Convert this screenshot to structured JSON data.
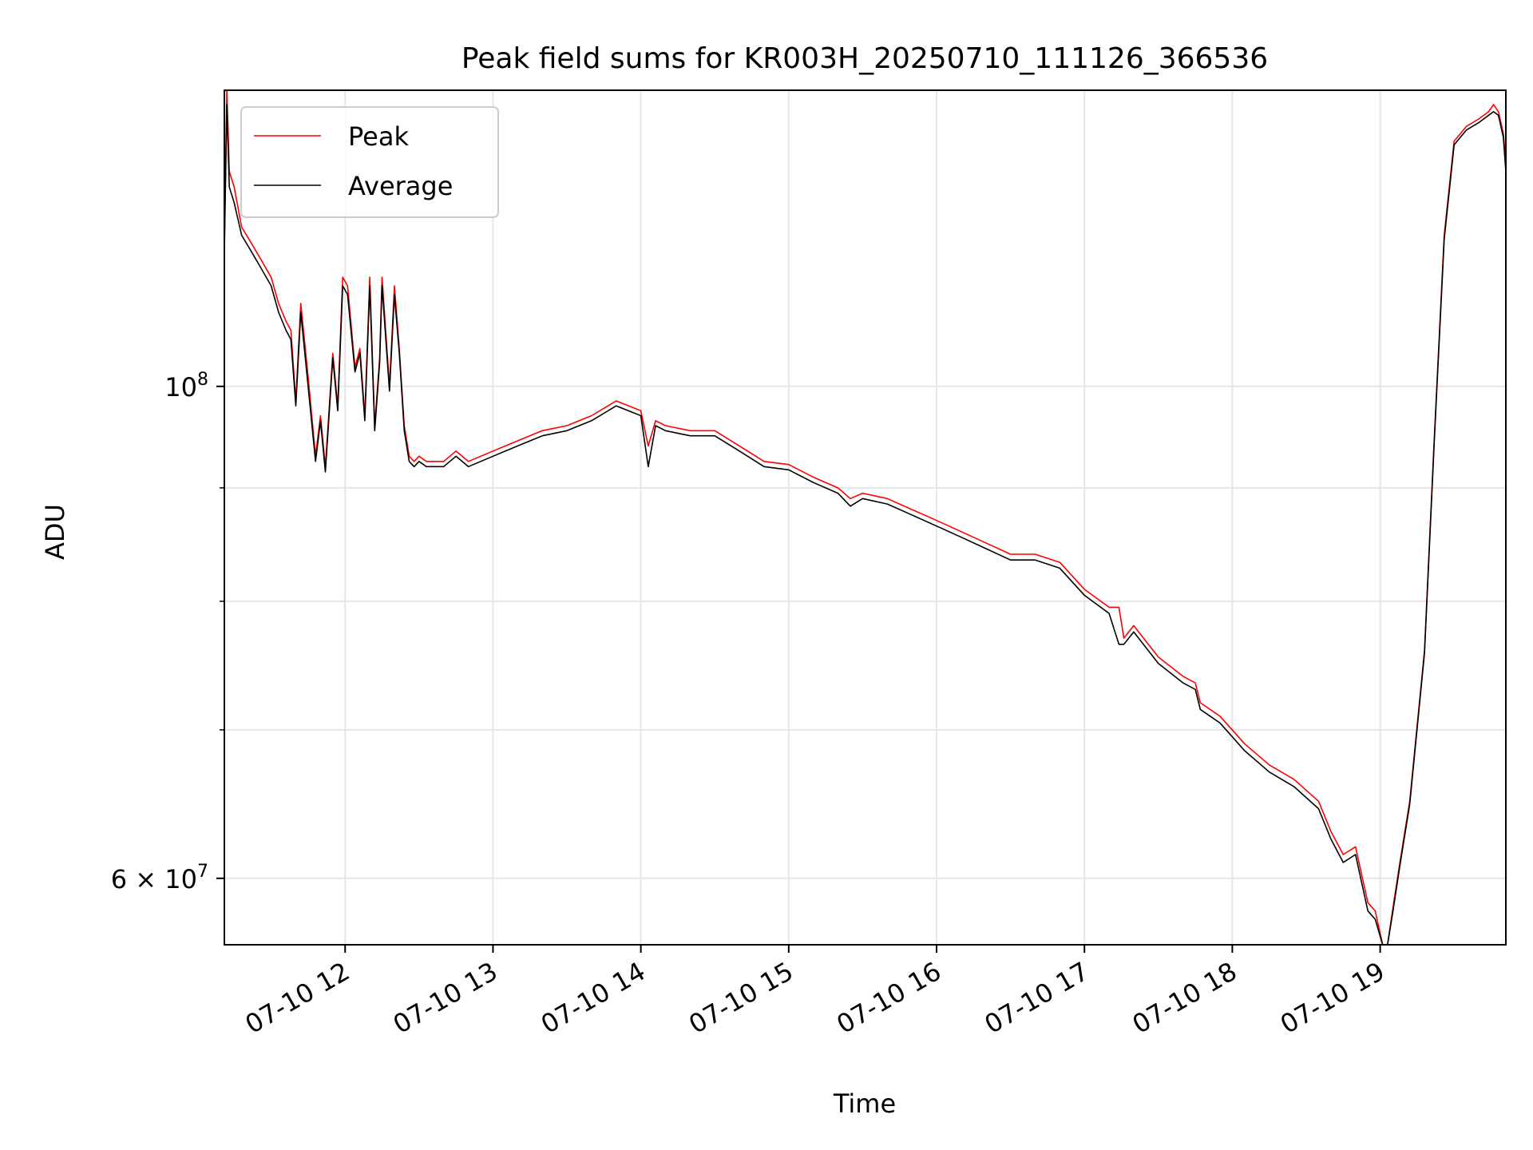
{
  "chart_data": {
    "type": "line",
    "title": "Peak field sums for KR003H_20250710_111126_366536",
    "xlabel": "Time",
    "ylabel": "ADU",
    "yscale": "log",
    "xlim": [
      "2025-07-10T11:11",
      "2025-07-10T19:51"
    ],
    "ylim": [
      56000000,
      136000000
    ],
    "x_ticks": [
      "2025-07-10T12:00",
      "2025-07-10T13:00",
      "2025-07-10T14:00",
      "2025-07-10T15:00",
      "2025-07-10T16:00",
      "2025-07-10T17:00",
      "2025-07-10T18:00",
      "2025-07-10T19:00"
    ],
    "x_tick_labels": [
      "07-10 12",
      "07-10 13",
      "07-10 14",
      "07-10 15",
      "07-10 16",
      "07-10 17",
      "07-10 18",
      "07-10 19"
    ],
    "y_major_ticks": [
      100000000,
      60000000
    ],
    "y_major_tick_labels": [
      {
        "mantissa": "",
        "base": "10",
        "exp": "8"
      },
      {
        "mantissa": "6",
        "base": "10",
        "exp": "7"
      }
    ],
    "y_minor_ticks": [
      70000000,
      80000000,
      90000000
    ],
    "grid": true,
    "legend_position": "upper-left",
    "series": [
      {
        "name": "Peak",
        "color": "#ff0000"
      },
      {
        "name": "Average",
        "color": "#000000"
      }
    ],
    "x": [
      "2025-07-10T11:11",
      "2025-07-10T11:12",
      "2025-07-10T11:13",
      "2025-07-10T11:15",
      "2025-07-10T11:18",
      "2025-07-10T11:22",
      "2025-07-10T11:26",
      "2025-07-10T11:30",
      "2025-07-10T11:33",
      "2025-07-10T11:36",
      "2025-07-10T11:38",
      "2025-07-10T11:40",
      "2025-07-10T11:42",
      "2025-07-10T11:45",
      "2025-07-10T11:48",
      "2025-07-10T11:50",
      "2025-07-10T11:52",
      "2025-07-10T11:55",
      "2025-07-10T11:57",
      "2025-07-10T11:59",
      "2025-07-10T12:01",
      "2025-07-10T12:04",
      "2025-07-10T12:06",
      "2025-07-10T12:08",
      "2025-07-10T12:10",
      "2025-07-10T12:12",
      "2025-07-10T12:14",
      "2025-07-10T12:15",
      "2025-07-10T12:18",
      "2025-07-10T12:20",
      "2025-07-10T12:22",
      "2025-07-10T12:24",
      "2025-07-10T12:26",
      "2025-07-10T12:28",
      "2025-07-10T12:30",
      "2025-07-10T12:33",
      "2025-07-10T12:36",
      "2025-07-10T12:40",
      "2025-07-10T12:45",
      "2025-07-10T12:50",
      "2025-07-10T13:00",
      "2025-07-10T13:10",
      "2025-07-10T13:20",
      "2025-07-10T13:30",
      "2025-07-10T13:40",
      "2025-07-10T13:50",
      "2025-07-10T14:00",
      "2025-07-10T14:03",
      "2025-07-10T14:06",
      "2025-07-10T14:10",
      "2025-07-10T14:20",
      "2025-07-10T14:30",
      "2025-07-10T14:40",
      "2025-07-10T14:50",
      "2025-07-10T15:00",
      "2025-07-10T15:10",
      "2025-07-10T15:20",
      "2025-07-10T15:25",
      "2025-07-10T15:30",
      "2025-07-10T15:40",
      "2025-07-10T15:50",
      "2025-07-10T16:00",
      "2025-07-10T16:10",
      "2025-07-10T16:20",
      "2025-07-10T16:30",
      "2025-07-10T16:40",
      "2025-07-10T16:50",
      "2025-07-10T17:00",
      "2025-07-10T17:10",
      "2025-07-10T17:14",
      "2025-07-10T17:16",
      "2025-07-10T17:20",
      "2025-07-10T17:30",
      "2025-07-10T17:40",
      "2025-07-10T17:45",
      "2025-07-10T17:47",
      "2025-07-10T17:55",
      "2025-07-10T18:05",
      "2025-07-10T18:15",
      "2025-07-10T18:25",
      "2025-07-10T18:35",
      "2025-07-10T18:40",
      "2025-07-10T18:45",
      "2025-07-10T18:50",
      "2025-07-10T18:55",
      "2025-07-10T18:58",
      "2025-07-10T19:01",
      "2025-07-10T19:03",
      "2025-07-10T19:05",
      "2025-07-10T19:08",
      "2025-07-10T19:12",
      "2025-07-10T19:18",
      "2025-07-10T19:22",
      "2025-07-10T19:26",
      "2025-07-10T19:30",
      "2025-07-10T19:35",
      "2025-07-10T19:40",
      "2025-07-10T19:44",
      "2025-07-10T19:46",
      "2025-07-10T19:48",
      "2025-07-10T19:50",
      "2025-07-10T19:51"
    ],
    "y_peak": [
      116000000,
      136000000,
      125000000,
      123000000,
      118000000,
      116000000,
      114000000,
      112000000,
      109000000,
      107000000,
      106000000,
      98500000,
      109000000,
      101000000,
      93000000,
      97000000,
      92000000,
      103500000,
      98000000,
      112000000,
      111000000,
      102000000,
      104000000,
      97000000,
      112000000,
      96000000,
      103000000,
      112000000,
      100000000,
      111000000,
      104000000,
      96000000,
      93000000,
      92500000,
      93000000,
      92500000,
      92500000,
      92500000,
      93500000,
      92500000,
      93500000,
      94500000,
      95500000,
      96000000,
      97000000,
      98500000,
      97500000,
      94000000,
      96500000,
      96000000,
      95500000,
      95500000,
      94000000,
      92500000,
      92200000,
      91000000,
      90000000,
      89000000,
      89500000,
      89000000,
      88000000,
      87000000,
      86000000,
      85000000,
      84000000,
      84000000,
      83300000,
      81000000,
      79500000,
      79500000,
      77000000,
      78000000,
      75500000,
      74000000,
      73500000,
      72000000,
      71000000,
      69000000,
      67500000,
      66500000,
      65000000,
      63000000,
      61500000,
      62000000,
      58500000,
      58000000,
      56000000,
      56000000,
      58000000,
      61000000,
      65000000,
      76000000,
      95000000,
      117000000,
      129000000,
      131000000,
      132000000,
      133000000,
      134000000,
      133000000,
      130000000,
      126000000
    ],
    "y_average": [
      115000000,
      134000000,
      123000000,
      121000000,
      117000000,
      115000000,
      113000000,
      111000000,
      108000000,
      106000000,
      105000000,
      98000000,
      108000000,
      100000000,
      92500000,
      96500000,
      91500000,
      103000000,
      97500000,
      111000000,
      110000000,
      101500000,
      103500000,
      96500000,
      111000000,
      95500000,
      102500000,
      111000000,
      99500000,
      110000000,
      103500000,
      95500000,
      92500000,
      92000000,
      92500000,
      92000000,
      92000000,
      92000000,
      93000000,
      92000000,
      93000000,
      94000000,
      95000000,
      95500000,
      96500000,
      98000000,
      97000000,
      92000000,
      96000000,
      95500000,
      95000000,
      95000000,
      93500000,
      92000000,
      91700000,
      90500000,
      89500000,
      88300000,
      89000000,
      88500000,
      87500000,
      86500000,
      85500000,
      84500000,
      83500000,
      83500000,
      82800000,
      80500000,
      79000000,
      76500000,
      76500000,
      77500000,
      75000000,
      73500000,
      73000000,
      71500000,
      70500000,
      68500000,
      67000000,
      66000000,
      64500000,
      62500000,
      61000000,
      61500000,
      58000000,
      57500000,
      56000000,
      56000000,
      57800000,
      60800000,
      64800000,
      75800000,
      94700000,
      116500000,
      128500000,
      130500000,
      131500000,
      132500000,
      133000000,
      132500000,
      129500000,
      125000000
    ]
  }
}
